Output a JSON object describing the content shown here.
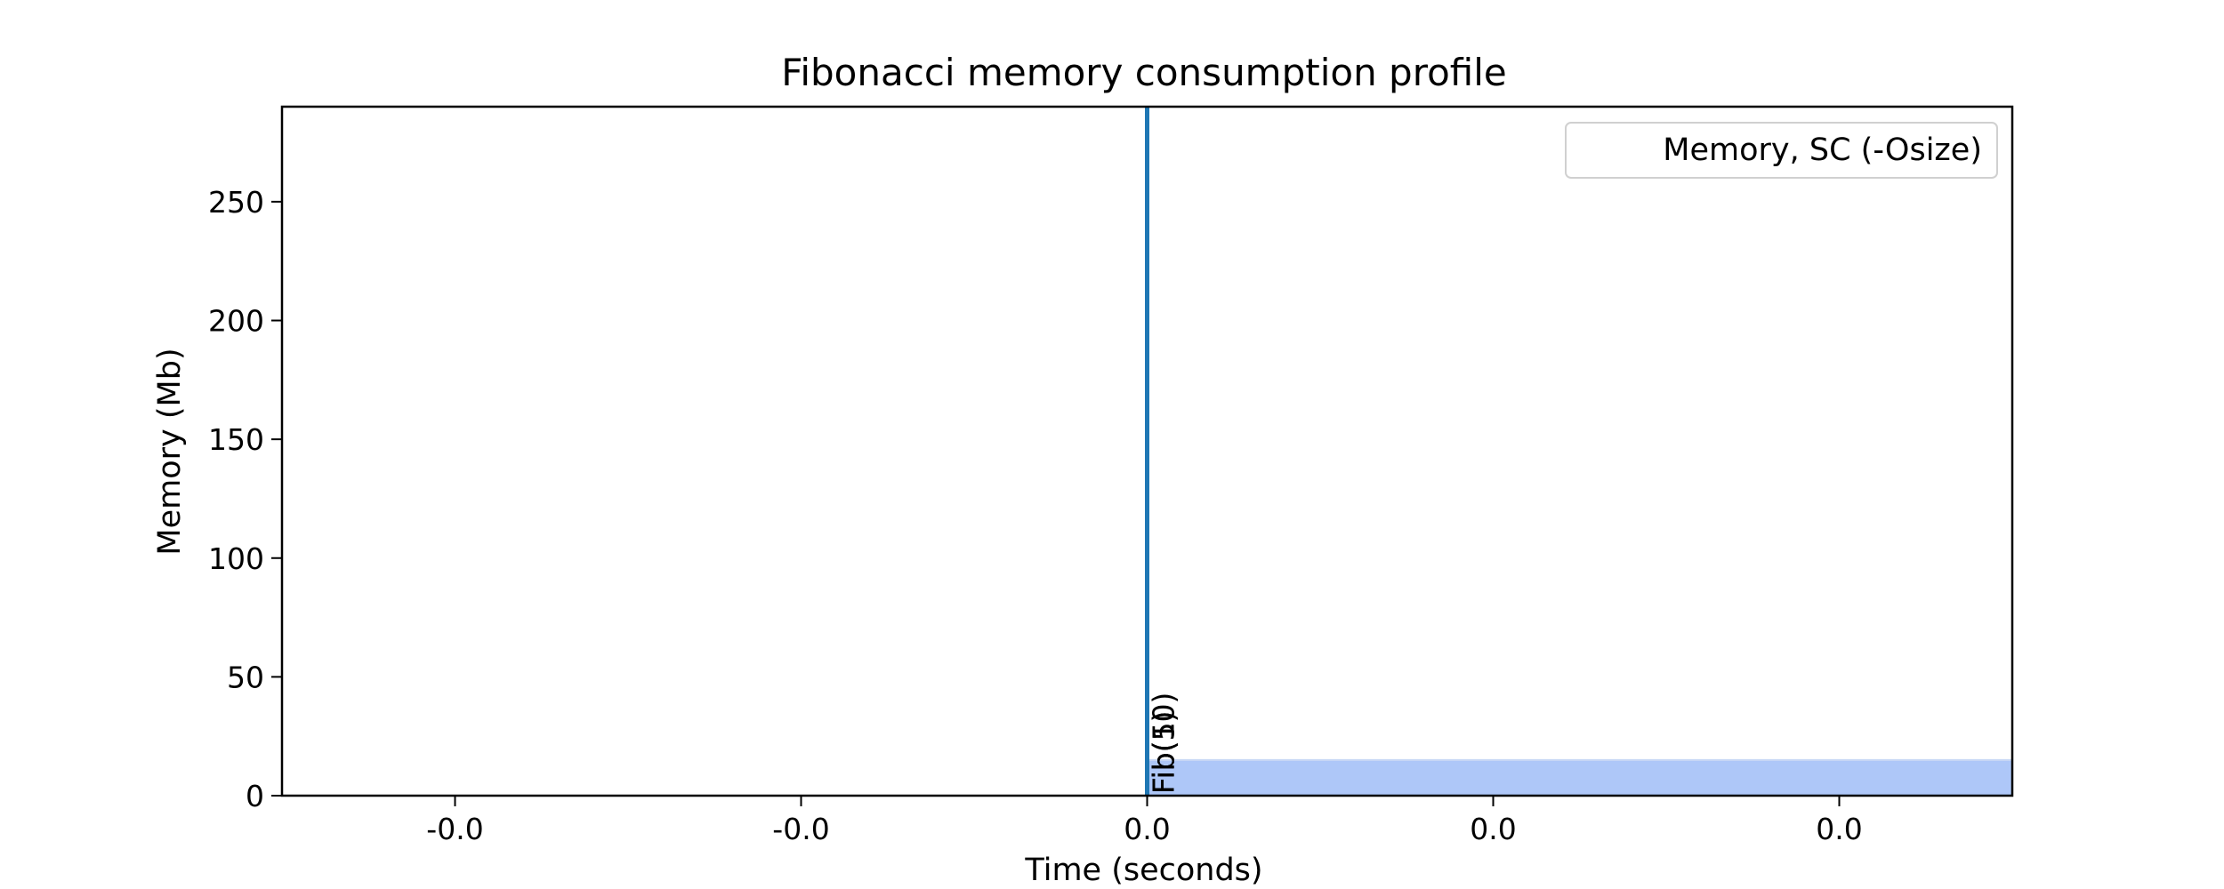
{
  "chart_data": {
    "type": "line",
    "title": "Fibonacci memory consumption profile",
    "xlabel": "Time (seconds)",
    "ylabel": "Memory (Mb)",
    "xlim": [
      -0.05,
      0.05
    ],
    "ylim": [
      0,
      290
    ],
    "xticks": [
      -0.04,
      -0.02,
      0.0,
      0.02,
      0.04
    ],
    "xtick_labels": [
      "-0.0",
      "-0.0",
      "0.0",
      "0.0",
      "0.0"
    ],
    "yticks": [
      0,
      50,
      100,
      150,
      200,
      250
    ],
    "ytick_labels": [
      "0",
      "50",
      "100",
      "150",
      "200",
      "250"
    ],
    "grid": false,
    "legend": {
      "position": "upper right",
      "entries": [
        "Memory, SC (-Osize)"
      ]
    },
    "series": [
      {
        "name": "Memory, SC (-Osize)",
        "color": "#1f77b4",
        "x": [
          0.0,
          0.0
        ],
        "y": [
          0,
          290
        ]
      }
    ],
    "shaded_region": {
      "x_start": 0.0,
      "x_end": 0.05,
      "y_top": 15,
      "color": "#aec7f8"
    },
    "annotations": [
      {
        "text": "Fib(10)",
        "x": 0.0,
        "y": 0
      },
      {
        "text": "Fib(5)",
        "x": 0.0,
        "y": 0
      },
      {
        "text": "Fib(1)",
        "x": 0.0,
        "y": 0
      }
    ]
  }
}
